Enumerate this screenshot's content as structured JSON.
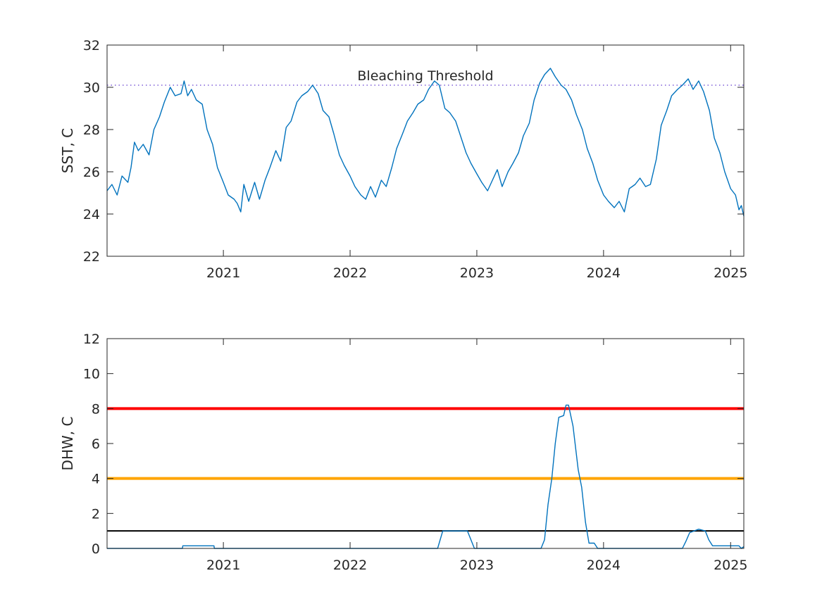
{
  "chart_data": [
    {
      "type": "line",
      "title": "",
      "xlabel": "",
      "ylabel": "SST, C",
      "xlim": [
        "2020-02-01",
        "2025-02-08"
      ],
      "ylim": [
        22,
        32
      ],
      "yticks": [
        22,
        24,
        26,
        28,
        30,
        32
      ],
      "xticks": [
        "2021",
        "2022",
        "2023",
        "2024",
        "2025"
      ],
      "grid": false,
      "annotation": "Bleaching Threshold",
      "threshold": {
        "value": 30.1,
        "color": "#7e5ed8",
        "style": "dotted"
      },
      "series": [
        {
          "color": "#0072bd",
          "points": [
            [
              "2020-02-01",
              25.1
            ],
            [
              "2020-02-15",
              25.4
            ],
            [
              "2020-03-01",
              24.9
            ],
            [
              "2020-03-15",
              25.8
            ],
            [
              "2020-04-01",
              25.5
            ],
            [
              "2020-04-10",
              26.2
            ],
            [
              "2020-04-20",
              27.4
            ],
            [
              "2020-05-01",
              27.0
            ],
            [
              "2020-05-15",
              27.3
            ],
            [
              "2020-06-01",
              26.8
            ],
            [
              "2020-06-15",
              28.0
            ],
            [
              "2020-07-01",
              28.6
            ],
            [
              "2020-07-15",
              29.3
            ],
            [
              "2020-08-01",
              30.0
            ],
            [
              "2020-08-15",
              29.6
            ],
            [
              "2020-09-01",
              29.7
            ],
            [
              "2020-09-10",
              30.3
            ],
            [
              "2020-09-20",
              29.6
            ],
            [
              "2020-10-01",
              29.9
            ],
            [
              "2020-10-15",
              29.4
            ],
            [
              "2020-11-01",
              29.2
            ],
            [
              "2020-11-15",
              28.0
            ],
            [
              "2020-12-01",
              27.3
            ],
            [
              "2020-12-15",
              26.2
            ],
            [
              "2021-01-01",
              25.5
            ],
            [
              "2021-01-15",
              24.9
            ],
            [
              "2021-02-01",
              24.7
            ],
            [
              "2021-02-10",
              24.5
            ],
            [
              "2021-02-20",
              24.1
            ],
            [
              "2021-03-01",
              25.4
            ],
            [
              "2021-03-15",
              24.6
            ],
            [
              "2021-04-01",
              25.5
            ],
            [
              "2021-04-15",
              24.7
            ],
            [
              "2021-05-01",
              25.6
            ],
            [
              "2021-05-15",
              26.2
            ],
            [
              "2021-06-01",
              27.0
            ],
            [
              "2021-06-15",
              26.5
            ],
            [
              "2021-07-01",
              28.1
            ],
            [
              "2021-07-15",
              28.4
            ],
            [
              "2021-08-01",
              29.3
            ],
            [
              "2021-08-15",
              29.6
            ],
            [
              "2021-09-01",
              29.8
            ],
            [
              "2021-09-15",
              30.1
            ],
            [
              "2021-10-01",
              29.7
            ],
            [
              "2021-10-15",
              28.9
            ],
            [
              "2021-11-01",
              28.6
            ],
            [
              "2021-11-15",
              27.8
            ],
            [
              "2021-12-01",
              26.8
            ],
            [
              "2021-12-15",
              26.3
            ],
            [
              "2022-01-01",
              25.8
            ],
            [
              "2022-01-15",
              25.3
            ],
            [
              "2022-02-01",
              24.9
            ],
            [
              "2022-02-15",
              24.7
            ],
            [
              "2022-03-01",
              25.3
            ],
            [
              "2022-03-15",
              24.8
            ],
            [
              "2022-04-01",
              25.6
            ],
            [
              "2022-04-15",
              25.3
            ],
            [
              "2022-05-01",
              26.2
            ],
            [
              "2022-05-15",
              27.1
            ],
            [
              "2022-06-01",
              27.8
            ],
            [
              "2022-06-15",
              28.4
            ],
            [
              "2022-07-01",
              28.8
            ],
            [
              "2022-07-15",
              29.2
            ],
            [
              "2022-08-01",
              29.4
            ],
            [
              "2022-08-15",
              29.9
            ],
            [
              "2022-09-01",
              30.3
            ],
            [
              "2022-09-15",
              30.1
            ],
            [
              "2022-10-01",
              29.0
            ],
            [
              "2022-10-15",
              28.8
            ],
            [
              "2022-11-01",
              28.4
            ],
            [
              "2022-11-15",
              27.7
            ],
            [
              "2022-12-01",
              26.9
            ],
            [
              "2022-12-15",
              26.4
            ],
            [
              "2023-01-01",
              25.9
            ],
            [
              "2023-01-15",
              25.5
            ],
            [
              "2023-02-01",
              25.1
            ],
            [
              "2023-02-15",
              25.6
            ],
            [
              "2023-03-01",
              26.1
            ],
            [
              "2023-03-15",
              25.3
            ],
            [
              "2023-04-01",
              26.0
            ],
            [
              "2023-04-15",
              26.4
            ],
            [
              "2023-05-01",
              26.9
            ],
            [
              "2023-05-15",
              27.7
            ],
            [
              "2023-06-01",
              28.3
            ],
            [
              "2023-06-15",
              29.4
            ],
            [
              "2023-07-01",
              30.2
            ],
            [
              "2023-07-15",
              30.6
            ],
            [
              "2023-08-01",
              30.9
            ],
            [
              "2023-08-15",
              30.5
            ],
            [
              "2023-09-01",
              30.1
            ],
            [
              "2023-09-15",
              29.9
            ],
            [
              "2023-10-01",
              29.4
            ],
            [
              "2023-10-15",
              28.7
            ],
            [
              "2023-11-01",
              28.0
            ],
            [
              "2023-11-15",
              27.1
            ],
            [
              "2023-12-01",
              26.4
            ],
            [
              "2023-12-15",
              25.6
            ],
            [
              "2024-01-01",
              24.9
            ],
            [
              "2024-01-15",
              24.6
            ],
            [
              "2024-02-01",
              24.3
            ],
            [
              "2024-02-15",
              24.6
            ],
            [
              "2024-03-01",
              24.1
            ],
            [
              "2024-03-15",
              25.2
            ],
            [
              "2024-04-01",
              25.4
            ],
            [
              "2024-04-15",
              25.7
            ],
            [
              "2024-05-01",
              25.3
            ],
            [
              "2024-05-15",
              25.4
            ],
            [
              "2024-06-01",
              26.6
            ],
            [
              "2024-06-15",
              28.2
            ],
            [
              "2024-07-01",
              28.9
            ],
            [
              "2024-07-15",
              29.6
            ],
            [
              "2024-08-01",
              29.9
            ],
            [
              "2024-08-15",
              30.1
            ],
            [
              "2024-09-01",
              30.4
            ],
            [
              "2024-09-15",
              29.9
            ],
            [
              "2024-10-01",
              30.3
            ],
            [
              "2024-10-15",
              29.8
            ],
            [
              "2024-11-01",
              28.9
            ],
            [
              "2024-11-15",
              27.6
            ],
            [
              "2024-12-01",
              26.9
            ],
            [
              "2024-12-15",
              26.0
            ],
            [
              "2025-01-01",
              25.2
            ],
            [
              "2025-01-15",
              24.9
            ],
            [
              "2025-01-25",
              24.2
            ],
            [
              "2025-02-01",
              24.4
            ],
            [
              "2025-02-08",
              23.9
            ]
          ]
        }
      ]
    },
    {
      "type": "line",
      "title": "",
      "xlabel": "",
      "ylabel": "DHW, C",
      "xlim": [
        "2020-02-01",
        "2025-02-08"
      ],
      "ylim": [
        0,
        12
      ],
      "yticks": [
        0,
        2,
        4,
        6,
        8,
        10,
        12
      ],
      "xticks": [
        "2021",
        "2022",
        "2023",
        "2024",
        "2025"
      ],
      "grid": false,
      "reference_lines": [
        {
          "value": 8,
          "color": "#ff0000"
        },
        {
          "value": 4,
          "color": "#ffa500"
        },
        {
          "value": 1,
          "color": "#000000"
        }
      ],
      "series": [
        {
          "color": "#0072bd",
          "points": [
            [
              "2020-02-01",
              0
            ],
            [
              "2020-09-05",
              0
            ],
            [
              "2020-09-06",
              0.15
            ],
            [
              "2020-12-05",
              0.15
            ],
            [
              "2020-12-06",
              0
            ],
            [
              "2022-09-10",
              0
            ],
            [
              "2022-09-25",
              1.0
            ],
            [
              "2022-12-05",
              1.0
            ],
            [
              "2022-12-25",
              0
            ],
            [
              "2023-07-05",
              0
            ],
            [
              "2023-07-15",
              0.5
            ],
            [
              "2023-07-25",
              2.5
            ],
            [
              "2023-08-05",
              4.0
            ],
            [
              "2023-08-15",
              6.0
            ],
            [
              "2023-08-25",
              7.5
            ],
            [
              "2023-09-08",
              7.6
            ],
            [
              "2023-09-15",
              8.2
            ],
            [
              "2023-09-22",
              8.2
            ],
            [
              "2023-10-05",
              7.0
            ],
            [
              "2023-10-20",
              4.5
            ],
            [
              "2023-10-30",
              3.5
            ],
            [
              "2023-11-10",
              1.5
            ],
            [
              "2023-11-20",
              0.3
            ],
            [
              "2023-12-05",
              0.3
            ],
            [
              "2023-12-15",
              0
            ],
            [
              "2024-08-15",
              0
            ],
            [
              "2024-08-25",
              0.4
            ],
            [
              "2024-09-05",
              0.9
            ],
            [
              "2024-10-01",
              1.1
            ],
            [
              "2024-10-20",
              1.0
            ],
            [
              "2024-10-30",
              0.5
            ],
            [
              "2024-11-10",
              0.15
            ],
            [
              "2025-01-25",
              0.15
            ],
            [
              "2025-02-01",
              0
            ],
            [
              "2025-02-08",
              0.1
            ]
          ]
        }
      ]
    }
  ]
}
